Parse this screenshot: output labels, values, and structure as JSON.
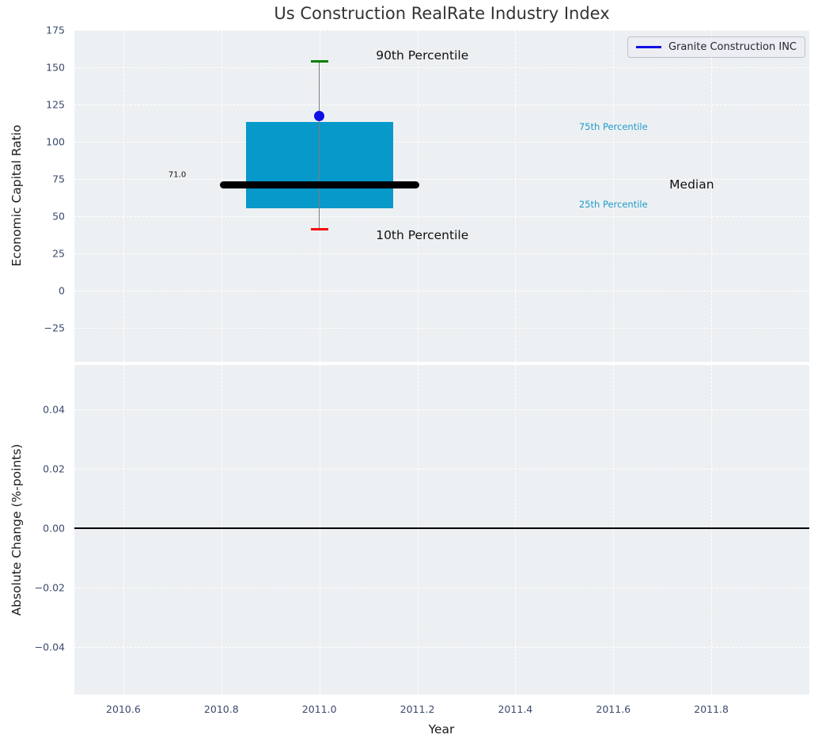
{
  "title": "Us Construction RealRate Industry Index",
  "legend": {
    "label": "Granite Construction INC"
  },
  "colors": {
    "figure_bg": "#ffffff",
    "plot_bg": "#edf0f2",
    "grid": "#ffffff",
    "tick_label": "#3b4a6b",
    "title": "#333333",
    "axis_label": "#1a1a1a",
    "box_fill": "#0899cb",
    "whisker": "#7a7a7a",
    "cap_90th": "#008000",
    "cap_10th": "#fa0a0a",
    "median_line": "#000000",
    "company_marker": "#0f0fe6",
    "legend_line": "#0f0fe6",
    "percentile_label": "#1f9bcb",
    "zero_line": "#000000"
  },
  "chart_data": [
    {
      "type": "boxplot",
      "title": "Us Construction RealRate Industry Index",
      "ylabel": "Economic Capital Ratio",
      "xlim": [
        2010.5,
        2012.0
      ],
      "ylim": [
        -48,
        175
      ],
      "grid": true,
      "legend_position": "upper right",
      "yticks": [
        {
          "value": 175,
          "label": "175"
        },
        {
          "value": 150,
          "label": "150"
        },
        {
          "value": 125,
          "label": "125"
        },
        {
          "value": 100,
          "label": "100"
        },
        {
          "value": 75,
          "label": "75"
        },
        {
          "value": 50,
          "label": "50"
        },
        {
          "value": 25,
          "label": "25"
        },
        {
          "value": 0,
          "label": "0"
        },
        {
          "value": -25,
          "label": "−25"
        }
      ],
      "box": {
        "x_center": 2011.0,
        "box_x_range": [
          2010.85,
          2011.15
        ],
        "median_x_range": [
          2010.8,
          2011.2
        ],
        "p10": 41,
        "p25": 55,
        "median": 71.0,
        "p75": 113,
        "p90": 154
      },
      "company_point": {
        "name": "Granite Construction INC",
        "x": 2011.0,
        "y": 117.5
      },
      "annotations": [
        {
          "text": "90th Percentile",
          "x": 2011.21,
          "y": 158,
          "color": "#111111",
          "size": 15.5
        },
        {
          "text": "10th Percentile",
          "x": 2011.21,
          "y": 37,
          "color": "#111111",
          "size": 15.5
        },
        {
          "text": "75th Percentile",
          "x": 2011.6,
          "y": 110,
          "color": "#1f9bcb",
          "size": 11.5
        },
        {
          "text": "25th Percentile",
          "x": 2011.6,
          "y": 58,
          "color": "#1f9bcb",
          "size": 11.5
        },
        {
          "text": "Median",
          "x": 2011.76,
          "y": 71,
          "color": "#111111",
          "size": 15.5
        },
        {
          "text": "71.0",
          "x": 2010.71,
          "y": 77.5,
          "color": "#111111",
          "size": 10
        }
      ]
    },
    {
      "type": "line",
      "ylabel": "Absolute Change (%-points)",
      "xlabel": "Year",
      "xlim": [
        2010.5,
        2012.0
      ],
      "ylim": [
        -0.056,
        0.055
      ],
      "grid": true,
      "zero_line": 0.0,
      "series": [],
      "yticks": [
        {
          "value": 0.04,
          "label": "0.04"
        },
        {
          "value": 0.02,
          "label": "0.02"
        },
        {
          "value": 0.0,
          "label": "0.00"
        },
        {
          "value": -0.02,
          "label": "−0.02"
        },
        {
          "value": -0.04,
          "label": "−0.04"
        }
      ],
      "xticks": [
        {
          "value": 2010.6,
          "label": "2010.6"
        },
        {
          "value": 2010.8,
          "label": "2010.8"
        },
        {
          "value": 2011.0,
          "label": "2011.0"
        },
        {
          "value": 2011.2,
          "label": "2011.2"
        },
        {
          "value": 2011.4,
          "label": "2011.4"
        },
        {
          "value": 2011.6,
          "label": "2011.6"
        },
        {
          "value": 2011.8,
          "label": "2011.8"
        }
      ]
    }
  ]
}
